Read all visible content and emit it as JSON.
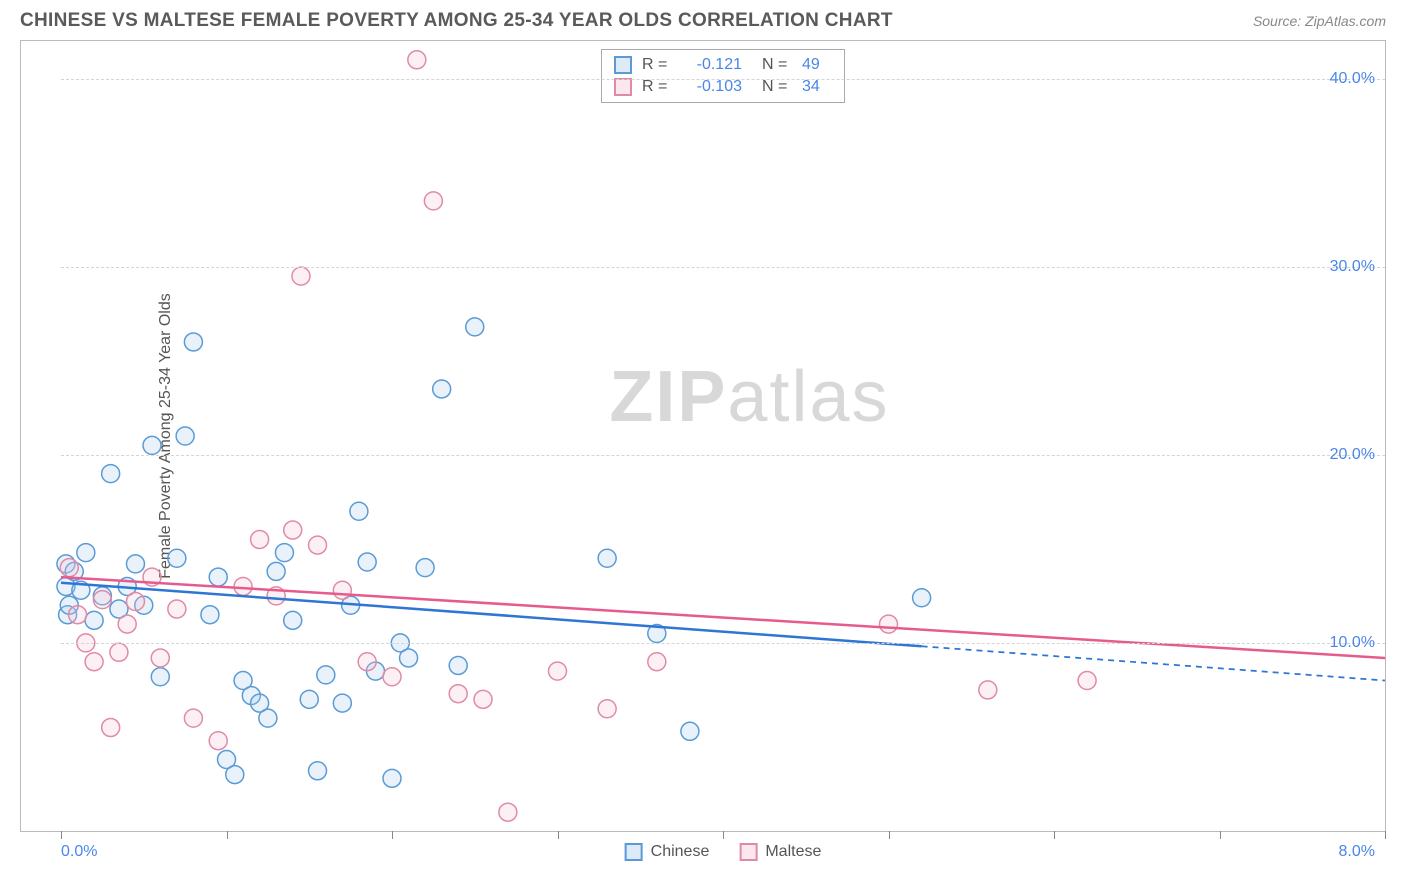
{
  "header": {
    "title": "CHINESE VS MALTESE FEMALE POVERTY AMONG 25-34 YEAR OLDS CORRELATION CHART",
    "source": "Source: ZipAtlas.com"
  },
  "chart": {
    "type": "scatter",
    "ylabel": "Female Poverty Among 25-34 Year Olds",
    "xlim": [
      0,
      8
    ],
    "ylim": [
      0,
      42
    ],
    "xtick_positions": [
      0,
      1,
      2,
      3,
      4,
      5,
      6,
      7,
      8
    ],
    "xaxis_start_label": "0.0%",
    "xaxis_end_label": "8.0%",
    "ytick_values": [
      10,
      20,
      30,
      40
    ],
    "ytick_labels": [
      "10.0%",
      "20.0%",
      "30.0%",
      "40.0%"
    ],
    "background_color": "#ffffff",
    "grid_color": "#d5d5d5",
    "tick_color": "#888888",
    "axis_label_color": "#4a86e8",
    "marker_radius": 9,
    "marker_stroke_width": 1.5,
    "marker_fill_opacity": 0.25,
    "line_width": 2.5,
    "dash_pattern": "6,5",
    "watermark_text_bold": "ZIP",
    "watermark_text_rest": "atlas",
    "watermark_color": "#d8d8d8",
    "series": [
      {
        "name": "Chinese",
        "color_stroke": "#5b9bd5",
        "color_fill": "#a9cdee",
        "line_color": "#2e75d6",
        "R": "-0.121",
        "N": "49",
        "trend": {
          "x1": 0,
          "y1": 13.2,
          "x2": 8,
          "y2": 8.0,
          "solid_until_x": 5.2
        },
        "points": [
          [
            0.03,
            14.2
          ],
          [
            0.03,
            13.0
          ],
          [
            0.04,
            11.5
          ],
          [
            0.05,
            12.0
          ],
          [
            0.12,
            12.8
          ],
          [
            0.15,
            14.8
          ],
          [
            0.2,
            11.2
          ],
          [
            0.25,
            12.5
          ],
          [
            0.3,
            19.0
          ],
          [
            0.35,
            11.8
          ],
          [
            0.4,
            13.0
          ],
          [
            0.45,
            14.2
          ],
          [
            0.5,
            12.0
          ],
          [
            0.6,
            8.2
          ],
          [
            0.7,
            14.5
          ],
          [
            0.75,
            21.0
          ],
          [
            0.8,
            26.0
          ],
          [
            0.9,
            11.5
          ],
          [
            0.95,
            13.5
          ],
          [
            1.0,
            3.8
          ],
          [
            1.05,
            3.0
          ],
          [
            1.1,
            8.0
          ],
          [
            1.15,
            7.2
          ],
          [
            1.2,
            6.8
          ],
          [
            1.3,
            13.8
          ],
          [
            1.35,
            14.8
          ],
          [
            1.4,
            11.2
          ],
          [
            1.5,
            7.0
          ],
          [
            1.55,
            3.2
          ],
          [
            1.6,
            8.3
          ],
          [
            1.7,
            6.8
          ],
          [
            1.75,
            12.0
          ],
          [
            1.8,
            17.0
          ],
          [
            1.85,
            14.3
          ],
          [
            1.9,
            8.5
          ],
          [
            2.0,
            2.8
          ],
          [
            2.05,
            10.0
          ],
          [
            2.1,
            9.2
          ],
          [
            2.2,
            14.0
          ],
          [
            2.3,
            23.5
          ],
          [
            2.4,
            8.8
          ],
          [
            2.5,
            26.8
          ],
          [
            3.3,
            14.5
          ],
          [
            3.6,
            10.5
          ],
          [
            3.8,
            5.3
          ],
          [
            5.2,
            12.4
          ],
          [
            0.55,
            20.5
          ],
          [
            1.25,
            6.0
          ],
          [
            0.08,
            13.8
          ]
        ]
      },
      {
        "name": "Maltese",
        "color_stroke": "#e08ba5",
        "color_fill": "#f4c4d2",
        "line_color": "#e75a8e",
        "R": "-0.103",
        "N": "34",
        "trend": {
          "x1": 0,
          "y1": 13.5,
          "x2": 8,
          "y2": 9.2,
          "solid_until_x": 8
        },
        "points": [
          [
            0.05,
            14.0
          ],
          [
            0.1,
            11.5
          ],
          [
            0.15,
            10.0
          ],
          [
            0.2,
            9.0
          ],
          [
            0.25,
            12.3
          ],
          [
            0.3,
            5.5
          ],
          [
            0.35,
            9.5
          ],
          [
            0.4,
            11.0
          ],
          [
            0.45,
            12.2
          ],
          [
            0.55,
            13.5
          ],
          [
            0.6,
            9.2
          ],
          [
            0.7,
            11.8
          ],
          [
            0.8,
            6.0
          ],
          [
            0.95,
            4.8
          ],
          [
            1.1,
            13.0
          ],
          [
            1.2,
            15.5
          ],
          [
            1.3,
            12.5
          ],
          [
            1.4,
            16.0
          ],
          [
            1.45,
            29.5
          ],
          [
            1.55,
            15.2
          ],
          [
            1.7,
            12.8
          ],
          [
            1.85,
            9.0
          ],
          [
            2.0,
            8.2
          ],
          [
            2.15,
            41.0
          ],
          [
            2.25,
            33.5
          ],
          [
            2.4,
            7.3
          ],
          [
            2.55,
            7.0
          ],
          [
            2.7,
            1.0
          ],
          [
            3.0,
            8.5
          ],
          [
            3.3,
            6.5
          ],
          [
            3.6,
            9.0
          ],
          [
            5.0,
            11.0
          ],
          [
            5.6,
            7.5
          ],
          [
            6.2,
            8.0
          ]
        ]
      }
    ],
    "bottom_legend": [
      {
        "label": "Chinese",
        "stroke": "#5b9bd5",
        "fill": "#a9cdee"
      },
      {
        "label": "Maltese",
        "stroke": "#e08ba5",
        "fill": "#f4c4d2"
      }
    ]
  }
}
